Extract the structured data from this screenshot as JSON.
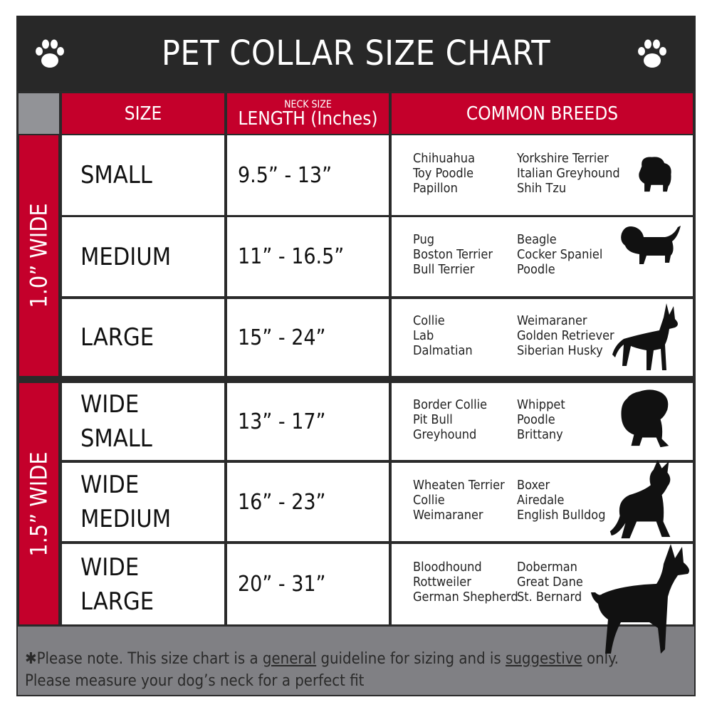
{
  "title": "PET COLLAR SIZE CHART",
  "icons": {
    "left": "paw-print-icon",
    "right": "paw-print-icon"
  },
  "colors": {
    "accent": "#c4002b",
    "dark": "#282828",
    "footer": "#808084"
  },
  "headers": {
    "size": "SIZE",
    "length_small": "NECK SIZE",
    "length": "LENGTH (Inches)",
    "breeds": "COMMON BREEDS"
  },
  "groups": [
    {
      "label": "1.0” WIDE"
    },
    {
      "label": "1.5” WIDE"
    }
  ],
  "rows": [
    {
      "size": "SMALL",
      "length": "9.5” - 13”",
      "breeds1": [
        "Chihuahua",
        "Toy Poodle",
        "Papillon"
      ],
      "breeds2": [
        "Yorkshire Terrier",
        "Italian Greyhound",
        "Shih Tzu"
      ],
      "icon": "small-dog-silhouette-icon"
    },
    {
      "size": "MEDIUM",
      "length": "11” - 16.5”",
      "breeds1": [
        "Pug",
        "Boston Terrier",
        "Bull Terrier"
      ],
      "breeds2": [
        "Beagle",
        "Cocker Spaniel",
        "Poodle"
      ],
      "icon": "medium-dog-silhouette-icon"
    },
    {
      "size": "LARGE",
      "length": "15” - 24”",
      "breeds1": [
        "Collie",
        "Lab",
        "Dalmatian"
      ],
      "breeds2": [
        "Weimaraner",
        "Golden Retriever",
        "Siberian Husky"
      ],
      "icon": "large-dog-silhouette-icon"
    },
    {
      "size": "WIDE SMALL",
      "length": "13” - 17”",
      "breeds1": [
        "Border Collie",
        "Pit Bull",
        "Greyhound"
      ],
      "breeds2": [
        "Whippet",
        "Poodle",
        "Brittany"
      ],
      "icon": "bulldog-silhouette-icon"
    },
    {
      "size": "WIDE MEDIUM",
      "length": "16” - 23”",
      "breeds1": [
        "Wheaten Terrier",
        "Collie",
        "Weimaraner"
      ],
      "breeds2": [
        "Boxer",
        "Airedale",
        "English Bulldog"
      ],
      "icon": "pitbull-silhouette-icon"
    },
    {
      "size": "WIDE LARGE",
      "length": "20” - 31”",
      "breeds1": [
        "Bloodhound",
        "Rottweiler",
        "German Shepherd"
      ],
      "breeds2": [
        "Doberman",
        "Great Dane",
        "St. Bernard"
      ],
      "icon": "doberman-silhouette-icon"
    }
  ],
  "footer": {
    "p1": "✱Please note. This size chart is a ",
    "u1": "general",
    "p2": " guideline for sizing and is ",
    "u2": "suggestive",
    "p3": " only.",
    "line2": "Please measure your dog’s neck for a perfect fit"
  }
}
